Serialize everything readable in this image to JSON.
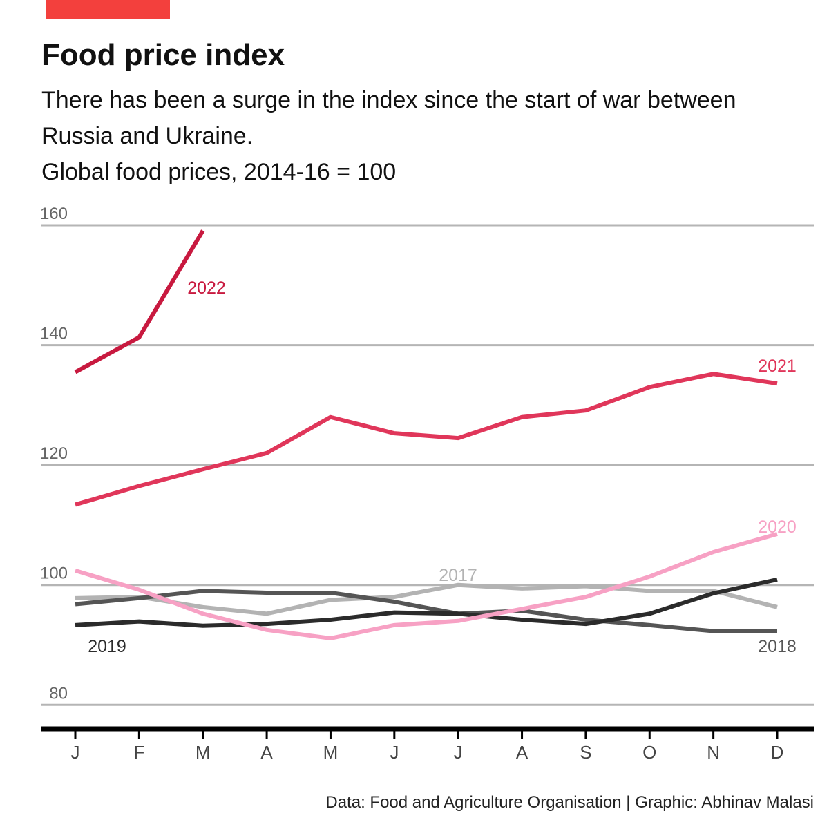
{
  "chart_data": {
    "type": "line",
    "title": "Food price index",
    "subtitle": "There has been a surge in the index since the start of war between Russia and Ukraine.",
    "y_label": "Global food prices, 2014-16 = 100",
    "source": "Data: Food and Agriculture Organisation | Graphic: Abhinav Malasi",
    "categories": [
      "J",
      "F",
      "M",
      "A",
      "M",
      "J",
      "J",
      "A",
      "S",
      "O",
      "N",
      "D"
    ],
    "series": [
      {
        "name": "2022",
        "color": "#c8193f",
        "values": [
          135.5,
          141.3,
          159.1,
          null,
          null,
          null,
          null,
          null,
          null,
          null,
          null,
          null
        ]
      },
      {
        "name": "2021",
        "color": "#e0365a",
        "values": [
          113.4,
          116.5,
          119.3,
          122.0,
          128.0,
          125.3,
          124.5,
          128.0,
          129.1,
          133.0,
          135.2,
          133.6
        ]
      },
      {
        "name": "2020",
        "color": "#f7a1c4",
        "values": [
          102.4,
          99.2,
          95.2,
          92.5,
          91.1,
          93.3,
          94.0,
          96.0,
          98.0,
          101.4,
          105.5,
          108.5
        ]
      },
      {
        "name": "2019",
        "color": "#2b2b2b",
        "values": [
          93.3,
          93.9,
          93.2,
          93.5,
          94.2,
          95.4,
          95.2,
          94.2,
          93.5,
          95.2,
          98.6,
          100.9
        ]
      },
      {
        "name": "2018",
        "color": "#555555",
        "values": [
          96.8,
          97.8,
          99.0,
          98.7,
          98.7,
          97.2,
          95.2,
          95.7,
          94.2,
          93.3,
          92.3,
          92.3
        ]
      },
      {
        "name": "2017",
        "color": "#b3b3b3",
        "values": [
          97.8,
          98.0,
          96.3,
          95.2,
          97.5,
          98.0,
          100.0,
          99.4,
          99.8,
          99.0,
          99.0,
          96.3
        ]
      }
    ],
    "ylim": [
      76,
      163
    ],
    "yticks": [
      80,
      100,
      120,
      140,
      160
    ],
    "grid": true
  }
}
